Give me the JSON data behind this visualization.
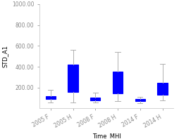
{
  "title": "",
  "xlabel": "Time_MHI",
  "ylabel": "STD_A1",
  "xlabels": [
    "2005 F",
    "2005 H",
    "2008 F",
    "2008 H",
    "2014 F",
    "2014 H"
  ],
  "ylim": [
    0,
    1000
  ],
  "yticks": [
    200,
    400,
    600,
    800,
    1000
  ],
  "ytick_labels": [
    "200.00",
    "400.00",
    "600.00",
    "800.00",
    "1000.00"
  ],
  "boxes": [
    {
      "q1": 88,
      "med": 100,
      "q3": 115,
      "whislo": 60,
      "whishi": 180
    },
    {
      "q1": 155,
      "med": 260,
      "q3": 420,
      "whislo": 60,
      "whishi": 560
    },
    {
      "q1": 80,
      "med": 90,
      "q3": 103,
      "whislo": 60,
      "whishi": 148
    },
    {
      "q1": 145,
      "med": 215,
      "q3": 355,
      "whislo": 70,
      "whishi": 545
    },
    {
      "q1": 68,
      "med": 78,
      "q3": 90,
      "whislo": 52,
      "whishi": 110
    },
    {
      "q1": 130,
      "med": 175,
      "q3": 245,
      "whislo": 80,
      "whishi": 425
    }
  ],
  "box_color": "#0000FF",
  "median_color": "#0000FF",
  "whisker_color": "#b0b0b0",
  "cap_color": "#b0b0b0",
  "background_color": "#ffffff",
  "tick_color": "#888888",
  "spine_color": "#cccccc",
  "fontsize": 5.5,
  "label_fontsize": 6
}
